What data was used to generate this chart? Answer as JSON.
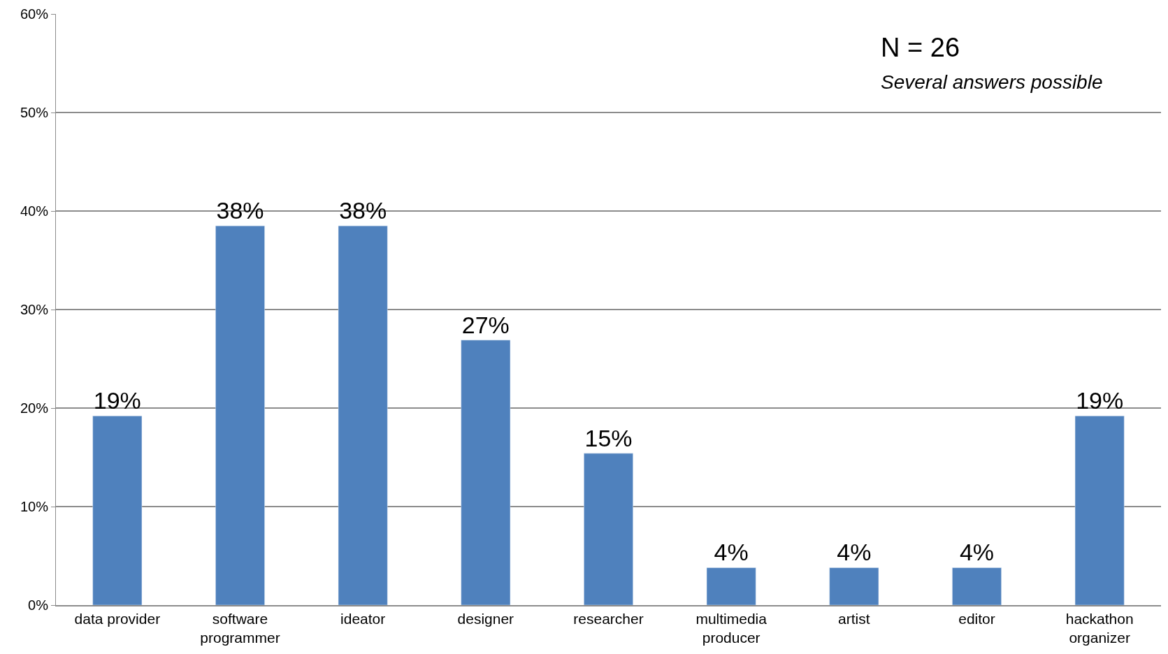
{
  "chart_data": {
    "type": "bar",
    "categories": [
      "data provider",
      "software programmer",
      "ideator",
      "designer",
      "researcher",
      "multimedia producer",
      "artist",
      "editor",
      "hackathon organizer"
    ],
    "values": [
      19.2,
      38.5,
      38.5,
      26.9,
      15.4,
      3.8,
      3.8,
      3.8,
      19.2
    ],
    "value_labels": [
      "19%",
      "38%",
      "38%",
      "27%",
      "15%",
      "4%",
      "4%",
      "4%",
      "19%"
    ],
    "color": "#4f81bd",
    "ylim": [
      0,
      60
    ],
    "yticks": [
      {
        "value": 0,
        "label": "0%"
      },
      {
        "value": 10,
        "label": "10%"
      },
      {
        "value": 20,
        "label": "20%"
      },
      {
        "value": 30,
        "label": "30%"
      },
      {
        "value": 40,
        "label": "40%"
      },
      {
        "value": 50,
        "label": "50%"
      },
      {
        "value": 60,
        "label": "60%"
      }
    ],
    "grid": "y",
    "legend": false,
    "annotations": [
      "N = 26",
      "Several answers possible"
    ]
  }
}
